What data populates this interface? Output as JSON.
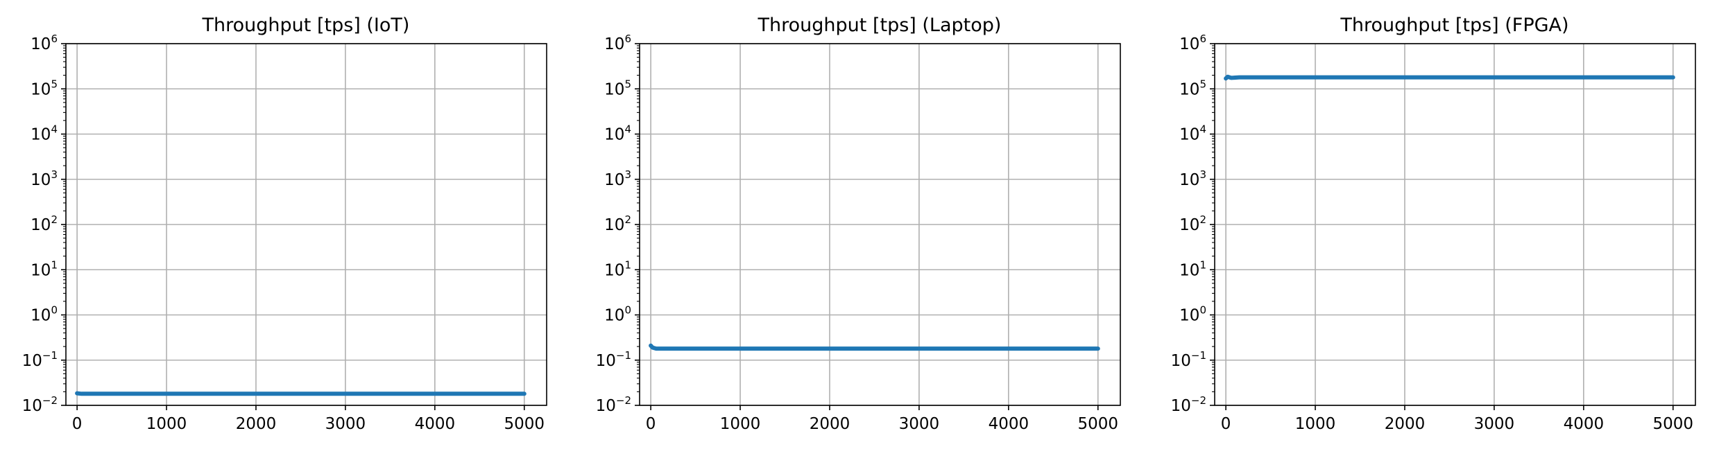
{
  "chart_data": [
    {
      "type": "line",
      "title": "Throughput [tps] (IoT)",
      "xlabel": "",
      "ylabel": "",
      "xlim": [
        -125,
        5250
      ],
      "ylim": [
        0.01,
        1000000
      ],
      "yscale": "log",
      "grid": true,
      "xticks": [
        0,
        1000,
        2000,
        3000,
        4000,
        5000
      ],
      "yticks": [
        {
          "base": "10",
          "exp": "−2"
        },
        {
          "base": "10",
          "exp": "−1"
        },
        {
          "base": "10",
          "exp": "0"
        },
        {
          "base": "10",
          "exp": "1"
        },
        {
          "base": "10",
          "exp": "2"
        },
        {
          "base": "10",
          "exp": "3"
        },
        {
          "base": "10",
          "exp": "4"
        },
        {
          "base": "10",
          "exp": "5"
        },
        {
          "base": "10",
          "exp": "6"
        }
      ],
      "series": [
        {
          "color": "#1f77b4",
          "x": [
            0,
            50,
            100,
            500,
            1000,
            2000,
            3000,
            4000,
            5000
          ],
          "y": [
            0.0185,
            0.018,
            0.018,
            0.018,
            0.018,
            0.018,
            0.018,
            0.018,
            0.018
          ]
        }
      ]
    },
    {
      "type": "line",
      "title": "Throughput [tps] (Laptop)",
      "xlabel": "",
      "ylabel": "",
      "xlim": [
        -125,
        5250
      ],
      "ylim": [
        0.01,
        1000000
      ],
      "yscale": "log",
      "grid": true,
      "xticks": [
        0,
        1000,
        2000,
        3000,
        4000,
        5000
      ],
      "yticks": [
        {
          "base": "10",
          "exp": "−2"
        },
        {
          "base": "10",
          "exp": "−1"
        },
        {
          "base": "10",
          "exp": "0"
        },
        {
          "base": "10",
          "exp": "1"
        },
        {
          "base": "10",
          "exp": "2"
        },
        {
          "base": "10",
          "exp": "3"
        },
        {
          "base": "10",
          "exp": "4"
        },
        {
          "base": "10",
          "exp": "5"
        },
        {
          "base": "10",
          "exp": "6"
        }
      ],
      "series": [
        {
          "color": "#1f77b4",
          "x": [
            0,
            20,
            60,
            150,
            500,
            1000,
            2000,
            3000,
            4000,
            5000
          ],
          "y": [
            0.21,
            0.19,
            0.18,
            0.18,
            0.18,
            0.18,
            0.18,
            0.18,
            0.18,
            0.18
          ]
        }
      ]
    },
    {
      "type": "line",
      "title": "Throughput [tps] (FPGA)",
      "xlabel": "",
      "ylabel": "",
      "xlim": [
        -125,
        5250
      ],
      "ylim": [
        0.01,
        1000000
      ],
      "yscale": "log",
      "grid": true,
      "xticks": [
        0,
        1000,
        2000,
        3000,
        4000,
        5000
      ],
      "yticks": [
        {
          "base": "10",
          "exp": "−2"
        },
        {
          "base": "10",
          "exp": "−1"
        },
        {
          "base": "10",
          "exp": "0"
        },
        {
          "base": "10",
          "exp": "1"
        },
        {
          "base": "10",
          "exp": "2"
        },
        {
          "base": "10",
          "exp": "3"
        },
        {
          "base": "10",
          "exp": "4"
        },
        {
          "base": "10",
          "exp": "5"
        },
        {
          "base": "10",
          "exp": "6"
        }
      ],
      "series": [
        {
          "color": "#1f77b4",
          "x": [
            0,
            20,
            60,
            150,
            500,
            1000,
            2000,
            3000,
            4000,
            5000
          ],
          "y": [
            170000,
            185000,
            175000,
            180000,
            180000,
            180000,
            180000,
            180000,
            180000,
            180000
          ]
        }
      ]
    }
  ]
}
